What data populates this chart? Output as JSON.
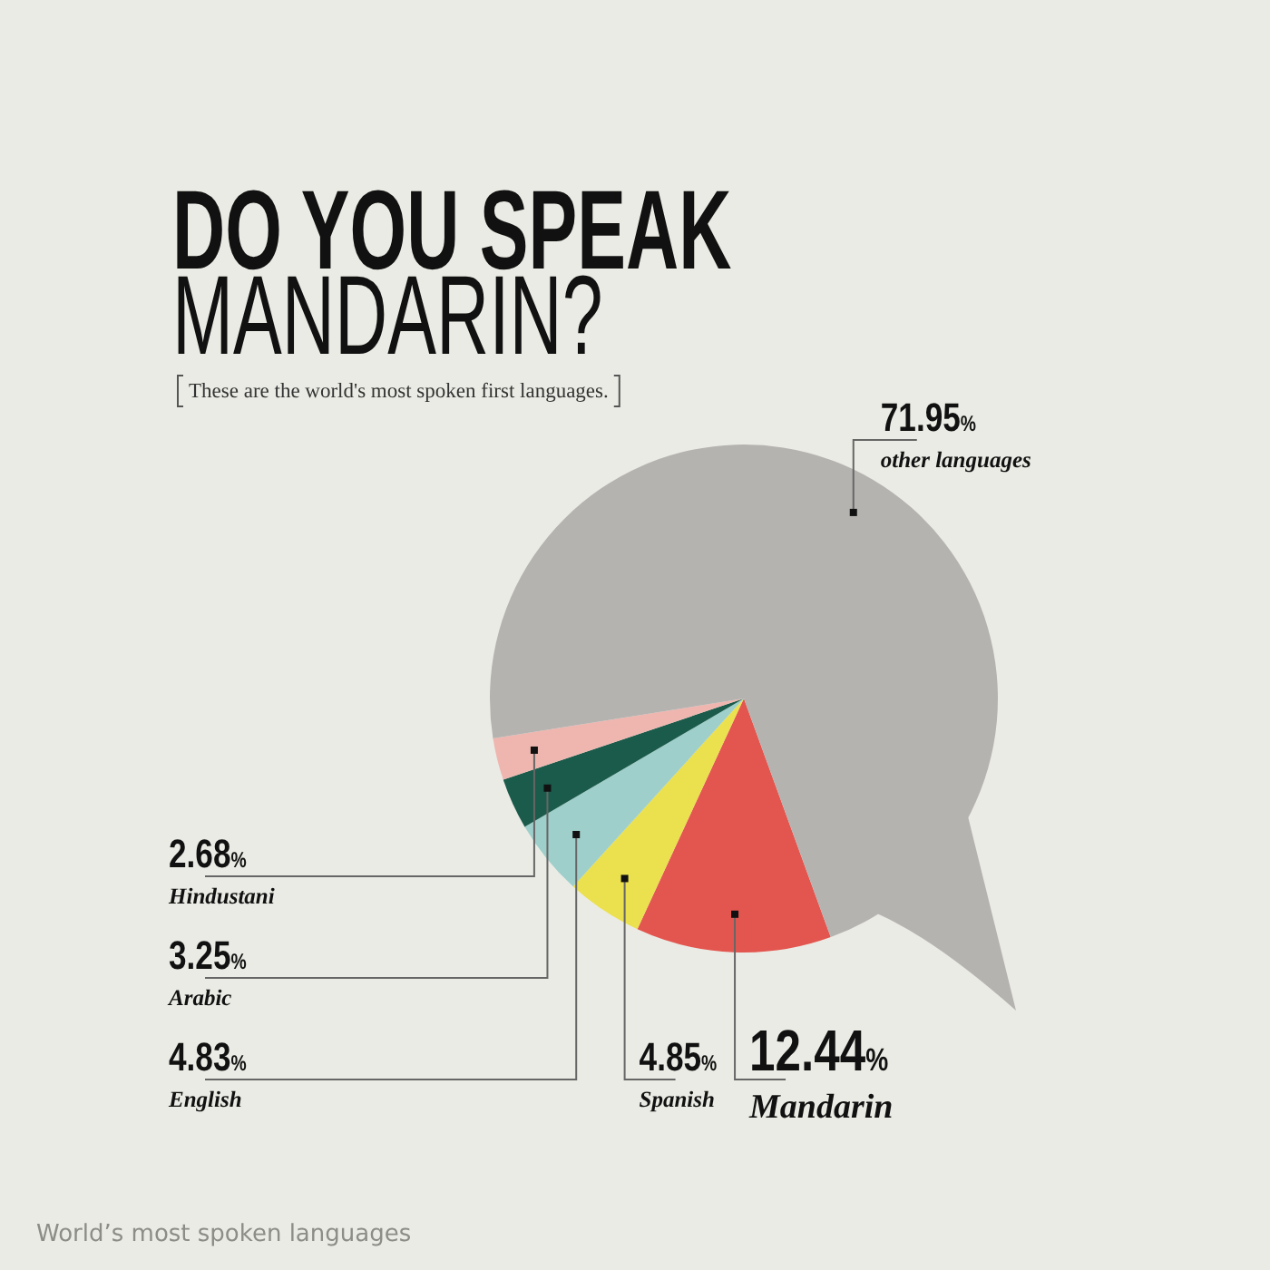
{
  "chart_data": {
    "type": "pie",
    "title": "DO YOU SPEAK MANDARIN?",
    "subtitle": "These are the world's most spoken first languages.",
    "categories": [
      "Mandarin",
      "Spanish",
      "English",
      "Arabic",
      "Hindustani",
      "other languages"
    ],
    "values": [
      12.44,
      4.85,
      4.83,
      3.25,
      2.68,
      71.95
    ],
    "value_labels": [
      "12.44%",
      "4.85%",
      "4.83%",
      "3.25%",
      "2.68%",
      "71.95%"
    ],
    "colors": [
      "#e3564f",
      "#ebe04e",
      "#9fcfcb",
      "#1b5b4b",
      "#efb6b0",
      "#b5b3b0"
    ],
    "annotations": [
      "World’s most spoken languages"
    ]
  }
}
